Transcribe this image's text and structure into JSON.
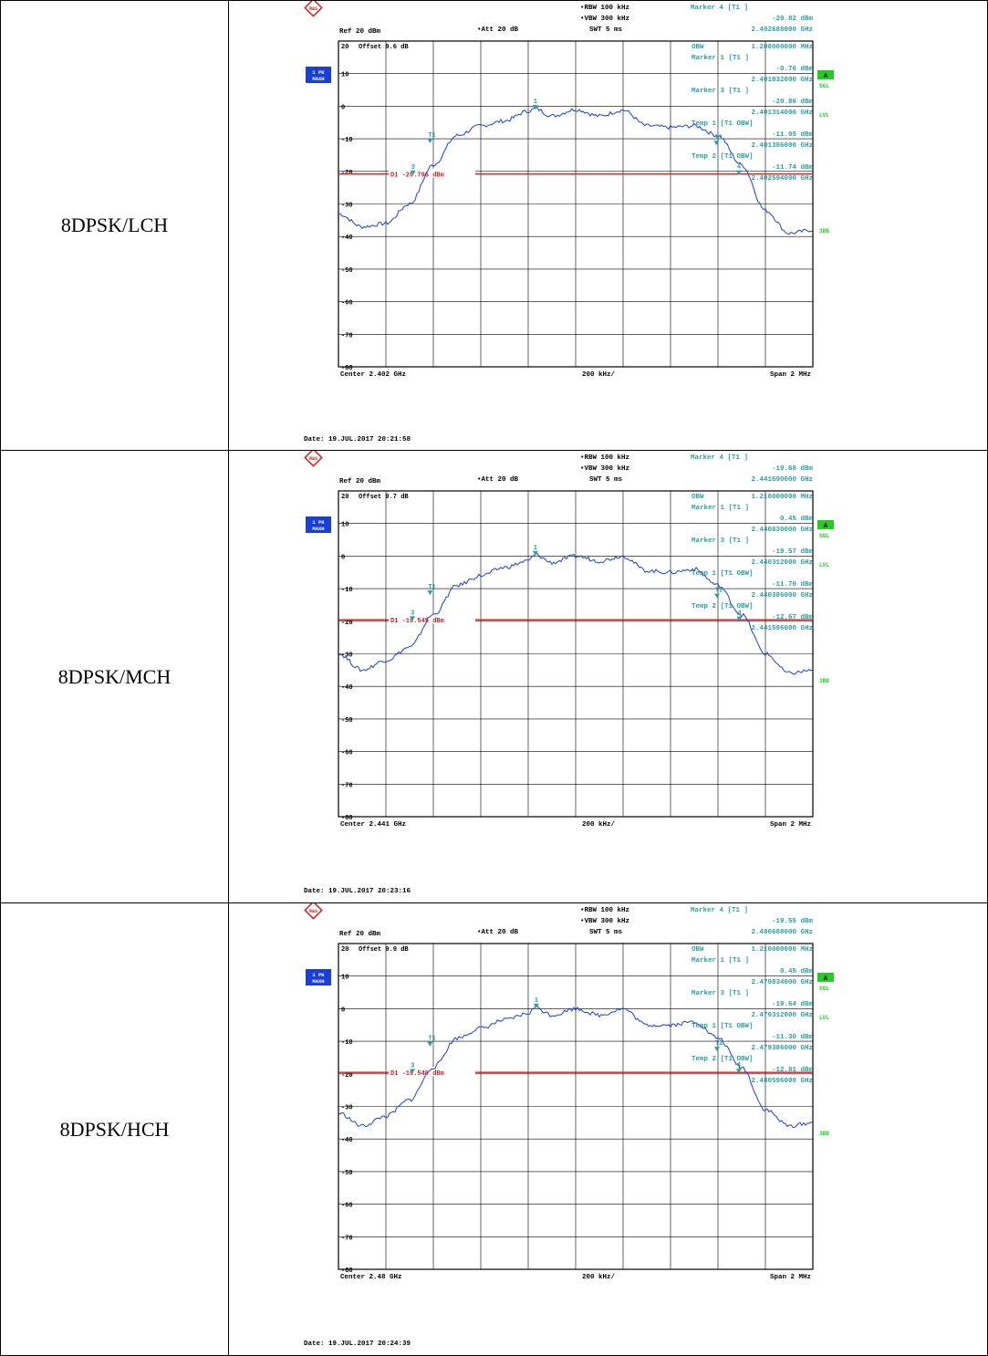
{
  "labels": {
    "ref": "Ref",
    "ref_value": "20 dBm",
    "att": "Att",
    "att_value": "20 dB",
    "rbw": "RBW",
    "rbw_value": "100 kHz",
    "vbw": "VBW",
    "vbw_value": "300 kHz",
    "swt": "SWT",
    "swt_value": "5 ms",
    "offset_label": "Offset",
    "trace_badge_line1": "1 PK",
    "trace_badge_line2": "MAXH",
    "side_a": "A",
    "side_sgl": "SGL",
    "side_lvl": "LVL",
    "side_3db": "3DB",
    "div": "200 kHz/",
    "span": "Span 2 MHz",
    "date_prefix": "Date:",
    "obw": "OBW",
    "marker4": "Marker 4 [T1 ]",
    "marker1": "Marker 1 [T1 ]",
    "marker3": "Marker 3 [T1 ]",
    "temp1": "Temp 1 [T1 OBW]",
    "temp2": "Temp 2 [T1 OBW]"
  },
  "colors": {
    "trace": "#1a3fd6",
    "marker_text": "#2aa0a0",
    "d1_line": "#d81e1e",
    "badge": "#1a3fd6",
    "side_green": "#22cc22",
    "grid": "#000000"
  },
  "chart_data": [
    {
      "type": "line",
      "row_label": "8DPSK/LCH",
      "center": "Center 2.402 GHz",
      "offset_value": "9.6 dB",
      "date": "19.JUL.2017  20:21:58",
      "y_ticks": [
        "20",
        "10",
        "0",
        "-10",
        "-20",
        "-30",
        "-40",
        "-50",
        "-60",
        "-70",
        "-80"
      ],
      "ylim": [
        -80,
        20
      ],
      "xlim": [
        2.401,
        2.403
      ],
      "d1_level": -20.796,
      "d1_label": "D1  -20.796 dBm",
      "marker4_value": "-20.82 dBm",
      "marker4_freq": "2.402688000 GHz",
      "obw_value": "1.208000000 MHz",
      "marker1_value": "-0.76 dBm",
      "marker1_freq": "2.401832000 GHz",
      "marker3_value": "-20.86 dBm",
      "marker3_freq": "2.401314000 GHz",
      "temp1_value": "-11.05 dBm",
      "temp1_freq": "2.401386000 GHz",
      "temp2_value": "-11.74 dBm",
      "temp2_freq": "2.402594000 GHz",
      "x": [
        2.401,
        2.4011,
        2.4012,
        2.4013,
        2.4014,
        2.4015,
        2.4016,
        2.4017,
        2.4018,
        2.40183,
        2.4019,
        2.402,
        2.4021,
        2.4022,
        2.4023,
        2.4024,
        2.4025,
        2.4026,
        2.4027,
        2.4028,
        2.4029,
        2.403
      ],
      "values": [
        -33,
        -37,
        -36,
        -30,
        -18,
        -9,
        -6,
        -4.5,
        -1.5,
        -0.76,
        -3,
        -1,
        -3,
        -1.2,
        -6,
        -6.5,
        -6,
        -9,
        -18,
        -32,
        -39,
        -38
      ],
      "marker_pts": [
        {
          "label": "1",
          "x": 2.40183,
          "y": -0.76
        },
        {
          "label": "3",
          "x": 2.401314,
          "y": -20.86
        },
        {
          "label": "T1",
          "x": 2.401386,
          "y": -11.05
        },
        {
          "label": "T2",
          "x": 2.402594,
          "y": -11.74
        },
        {
          "label": "4",
          "x": 2.402688,
          "y": -20.82
        }
      ]
    },
    {
      "type": "line",
      "row_label": "8DPSK/MCH",
      "center": "Center 2.441 GHz",
      "offset_value": "9.7 dB",
      "date": "19.JUL.2017  20:23:16",
      "y_ticks": [
        "20",
        "10",
        "0",
        "-10",
        "-20",
        "-30",
        "-40",
        "-50",
        "-60",
        "-70",
        "-80"
      ],
      "ylim": [
        -80,
        20
      ],
      "xlim": [
        2.44,
        2.442
      ],
      "d1_level": -19.545,
      "d1_label": "D1  -19.545 dBm",
      "marker4_value": "-19.68 dBm",
      "marker4_freq": "2.441690000 GHz",
      "obw_value": "1.210000000 MHz",
      "marker1_value": "0.45 dBm",
      "marker1_freq": "2.440830000 GHz",
      "marker3_value": "-19.57 dBm",
      "marker3_freq": "2.440312000 GHz",
      "temp1_value": "-11.70 dBm",
      "temp1_freq": "2.440386000 GHz",
      "temp2_value": "-12.67 dBm",
      "temp2_freq": "2.441596000 GHz",
      "x": [
        2.44,
        2.4401,
        2.4402,
        2.4403,
        2.4404,
        2.4405,
        2.4406,
        2.4407,
        2.4408,
        2.44083,
        2.4409,
        2.441,
        2.4411,
        2.4412,
        2.4413,
        2.4414,
        2.4415,
        2.4416,
        2.4417,
        2.4418,
        2.4419,
        2.442
      ],
      "values": [
        -30,
        -35,
        -32,
        -28,
        -18,
        -9,
        -6,
        -3.5,
        -1.5,
        0.45,
        -2,
        0,
        -1.5,
        0,
        -4.5,
        -5,
        -4,
        -9,
        -18,
        -30,
        -36,
        -35
      ],
      "marker_pts": [
        {
          "label": "1",
          "x": 2.44083,
          "y": 0.45
        },
        {
          "label": "3",
          "x": 2.440312,
          "y": -19.57
        },
        {
          "label": "T1",
          "x": 2.440386,
          "y": -11.7
        },
        {
          "label": "T2",
          "x": 2.441596,
          "y": -12.67
        },
        {
          "label": "4",
          "x": 2.44169,
          "y": -19.68
        }
      ]
    },
    {
      "type": "line",
      "row_label": "8DPSK/HCH",
      "center": "Center 2.48 GHz",
      "offset_value": "9.9 dB",
      "date": "19.JUL.2017  20:24:39",
      "y_ticks": [
        "20",
        "10",
        "0",
        "-10",
        "-20",
        "-30",
        "-40",
        "-50",
        "-60",
        "-70",
        "-80"
      ],
      "ylim": [
        -80,
        20
      ],
      "xlim": [
        2.479,
        2.481
      ],
      "d1_level": -19.549,
      "d1_label": "D1  -19.549 dBm",
      "marker4_value": "-19.55 dBm",
      "marker4_freq": "2.480688000 GHz",
      "obw_value": "1.210000000 MHz",
      "marker1_value": "0.45 dBm",
      "marker1_freq": "2.479834000 GHz",
      "marker3_value": "-19.64 dBm",
      "marker3_freq": "2.479312000 GHz",
      "temp1_value": "-11.30 dBm",
      "temp1_freq": "2.479386000 GHz",
      "temp2_value": "-12.81 dBm",
      "temp2_freq": "2.480596000 GHz",
      "x": [
        2.479,
        2.4791,
        2.4792,
        2.4793,
        2.4794,
        2.4795,
        2.4796,
        2.4797,
        2.4798,
        2.47983,
        2.4799,
        2.48,
        2.4801,
        2.4802,
        2.4803,
        2.4804,
        2.4805,
        2.4806,
        2.4807,
        2.4808,
        2.4809,
        2.481
      ],
      "values": [
        -32,
        -36,
        -33,
        -28,
        -18,
        -9,
        -6,
        -3.5,
        -1.5,
        0.45,
        -2,
        0,
        -2,
        0,
        -5,
        -5,
        -4,
        -9,
        -18,
        -31,
        -36,
        -35
      ],
      "marker_pts": [
        {
          "label": "1",
          "x": 2.479834,
          "y": 0.45
        },
        {
          "label": "3",
          "x": 2.479312,
          "y": -19.64
        },
        {
          "label": "T1",
          "x": 2.479386,
          "y": -11.3
        },
        {
          "label": "T2",
          "x": 2.480596,
          "y": -12.81
        },
        {
          "label": "4",
          "x": 2.480688,
          "y": -19.55
        }
      ]
    }
  ]
}
